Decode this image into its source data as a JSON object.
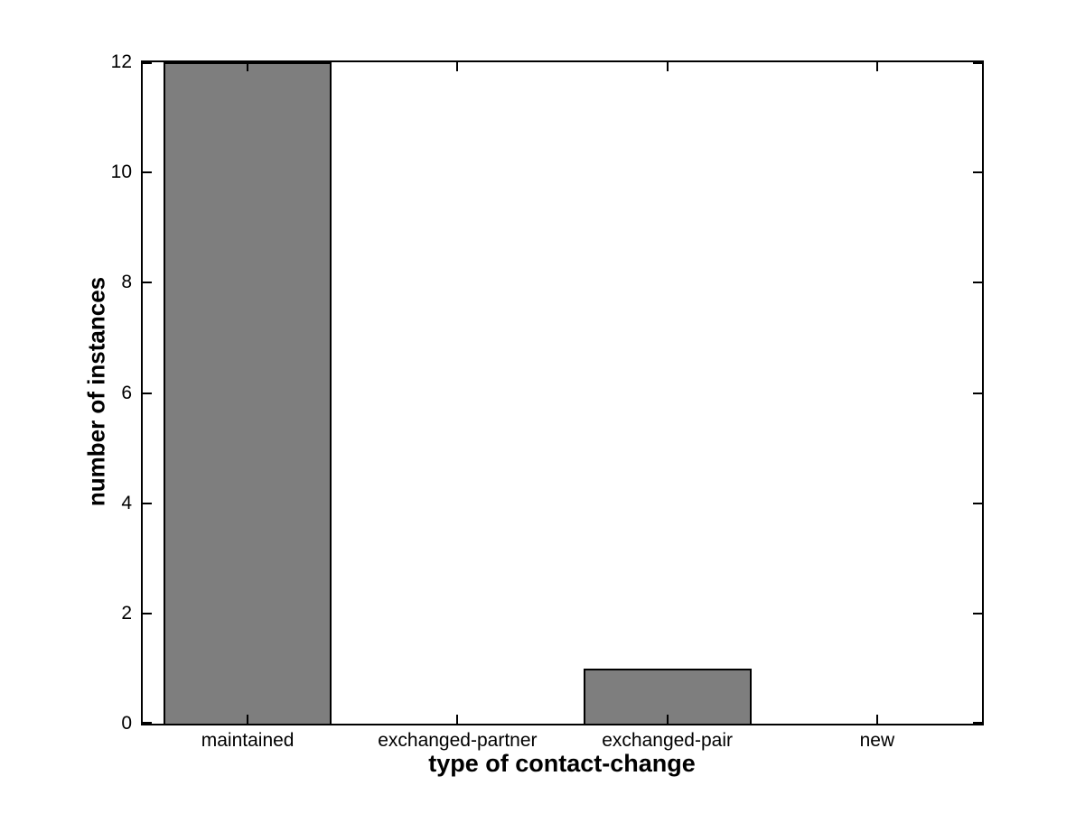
{
  "chart_data": {
    "type": "bar",
    "title": "",
    "categories": [
      "maintained",
      "exchanged-partner",
      "exchanged-pair",
      "new"
    ],
    "values": [
      12,
      0,
      1,
      0
    ],
    "xlabel": "type of contact-change",
    "ylabel": "number of instances",
    "ylim": [
      0,
      12
    ],
    "yticks": [
      0,
      2,
      4,
      6,
      8,
      10,
      12
    ],
    "bar_width_fraction": 0.8,
    "grid": false,
    "legend": "none",
    "box": true,
    "tick_direction": "in",
    "colors": {
      "bar_fill": "#7e7e7e",
      "bar_edge": "#000000",
      "axis": "#000000",
      "background": "#ffffff",
      "text": "#000000"
    }
  }
}
